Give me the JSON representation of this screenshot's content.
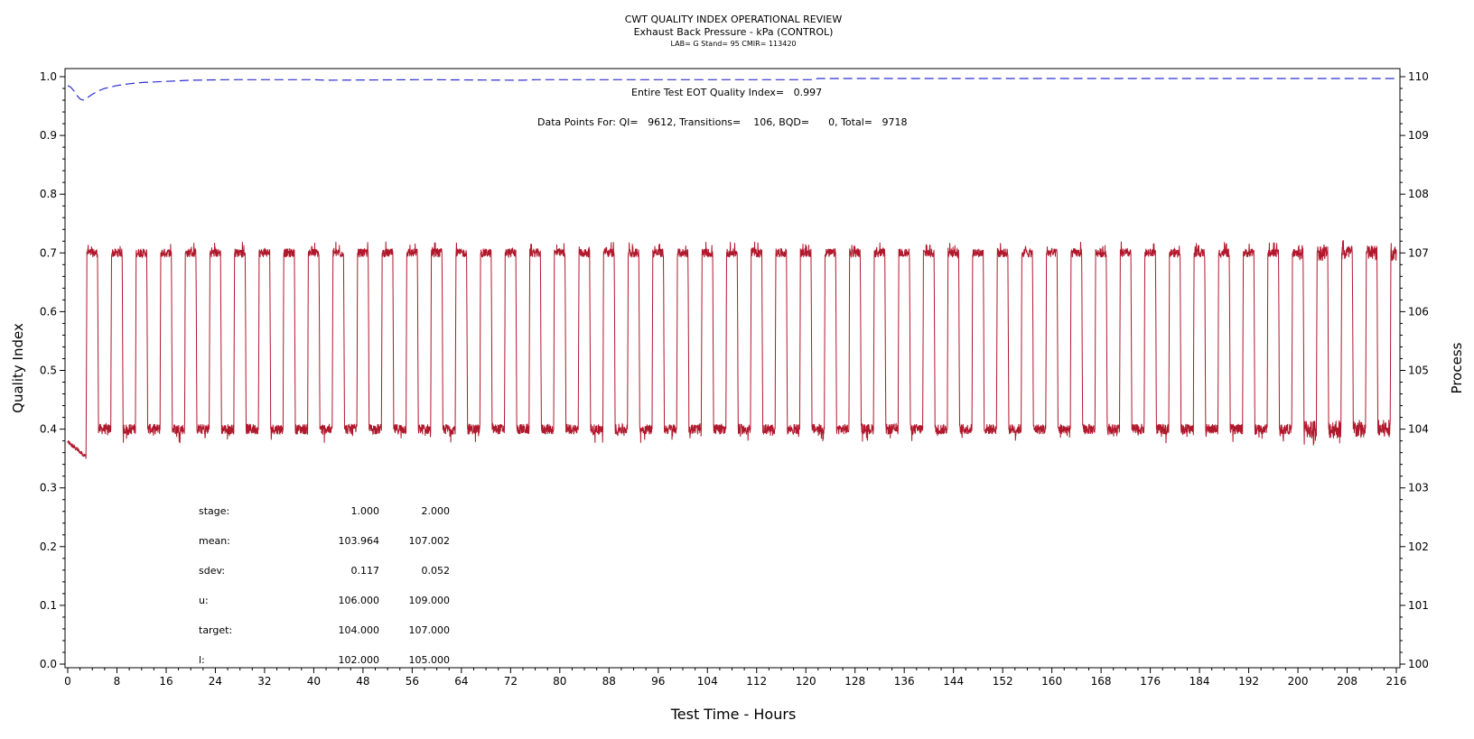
{
  "header": {
    "title": "CWT QUALITY INDEX OPERATIONAL REVIEW",
    "subtitle": "Exhaust Back Pressure - kPa (CONTROL)",
    "meta": "LAB= G Stand= 95 CMIR= 113420"
  },
  "annotations": {
    "eot_quality_index": "Entire Test EOT Quality Index=   0.997",
    "data_points": "Data Points For: QI=   9612, Transitions=    106, BQD=      0, Total=   9718"
  },
  "stats_table": {
    "rows": [
      {
        "label": "stage:",
        "values": [
          "1.000",
          "2.000"
        ]
      },
      {
        "label": "mean:",
        "values": [
          "103.964",
          "107.002"
        ]
      },
      {
        "label": "sdev:",
        "values": [
          "0.117",
          "0.052"
        ]
      },
      {
        "label": "u:",
        "values": [
          "106.000",
          "109.000"
        ]
      },
      {
        "label": "target:",
        "values": [
          "104.000",
          "107.000"
        ]
      },
      {
        "label": "l:",
        "values": [
          "102.000",
          "105.000"
        ]
      }
    ]
  },
  "colors": {
    "process": "#b0182c",
    "quality_index": "#2b2fd0",
    "axis": "#000000"
  },
  "chart_data": {
    "type": "line",
    "xlabel": "Test Time - Hours",
    "ylabel": "Quality Index",
    "y2label": "Process",
    "xlim": [
      0,
      216
    ],
    "ylim": [
      0.0,
      1.0
    ],
    "y2lim": [
      100,
      110
    ],
    "x_ticks": [
      0,
      8,
      16,
      24,
      32,
      40,
      48,
      56,
      64,
      72,
      80,
      88,
      96,
      104,
      112,
      120,
      128,
      136,
      144,
      152,
      160,
      168,
      176,
      184,
      192,
      200,
      208,
      216
    ],
    "y_ticks": [
      "0.0",
      "0.1",
      "0.2",
      "0.3",
      "0.4",
      "0.5",
      "0.6",
      "0.7",
      "0.8",
      "0.9",
      "1.0"
    ],
    "y2_ticks": [
      "100",
      "101",
      "102",
      "103",
      "104",
      "105",
      "106",
      "107",
      "108",
      "109",
      "110"
    ],
    "grid": false,
    "series": [
      {
        "axis": "left",
        "style": "dashed",
        "x": [
          0,
          0.5,
          1.0,
          1.5,
          2.0,
          2.5,
          3.0,
          4.0,
          5.0,
          6.0,
          8.0,
          10.0,
          12.0,
          16.0,
          20.0,
          26.0,
          40.0,
          42.0,
          57.0,
          74.0,
          76.0,
          121.0,
          122.0,
          216.0
        ],
        "values": [
          0.985,
          0.982,
          0.976,
          0.968,
          0.962,
          0.96,
          0.963,
          0.97,
          0.976,
          0.98,
          0.985,
          0.988,
          0.99,
          0.992,
          0.994,
          0.995,
          0.995,
          0.994,
          0.995,
          0.994,
          0.995,
          0.995,
          0.997,
          0.997
        ]
      },
      {
        "axis": "right",
        "style": "solid",
        "cycle_hours": 4,
        "first_rise_hour": 3.0,
        "cycles": 54,
        "x": [
          0,
          2.5,
          3.0,
          3.5,
          4.5,
          5.0,
          5.5,
          6.5,
          7.0,
          7.5,
          8.5
        ],
        "values": [
          103.8,
          103.5,
          107.0,
          107.0,
          107.0,
          104.0,
          104.0,
          104.0,
          107.0,
          107.0,
          107.0
        ]
      }
    ]
  }
}
